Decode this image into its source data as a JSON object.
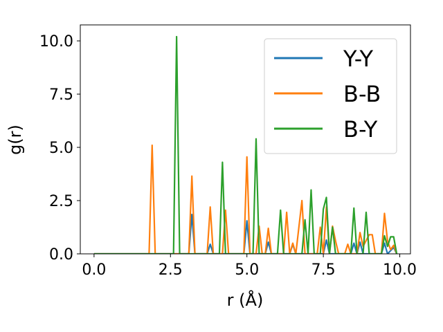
{
  "chart_data": {
    "type": "line",
    "xlabel": "r (Å)",
    "ylabel": "g(r)",
    "xlim": [
      -0.45,
      10.35
    ],
    "ylim": [
      0,
      10.75
    ],
    "xticks": [
      0.0,
      2.5,
      5.0,
      7.5,
      10.0
    ],
    "xtick_labels": [
      "0.0",
      "2.5",
      "5.0",
      "7.5",
      "10.0"
    ],
    "yticks": [
      0.0,
      2.5,
      5.0,
      7.5,
      10.0
    ],
    "ytick_labels": [
      "0.0",
      "2.5",
      "5.0",
      "7.5",
      "10.0"
    ],
    "grid": false,
    "legend_position": "top-right",
    "series": [
      {
        "name": "Y-Y",
        "color": "#1f77b4",
        "points": [
          [
            0,
            0
          ],
          [
            3.0,
            0
          ],
          [
            3.1,
            0
          ],
          [
            3.2,
            1.85
          ],
          [
            3.3,
            0
          ],
          [
            3.7,
            0
          ],
          [
            3.8,
            0.45
          ],
          [
            3.9,
            0
          ],
          [
            4.9,
            0
          ],
          [
            5.0,
            1.55
          ],
          [
            5.1,
            0
          ],
          [
            5.6,
            0
          ],
          [
            5.7,
            0.55
          ],
          [
            5.8,
            0
          ],
          [
            6.4,
            0
          ],
          [
            6.5,
            0.45
          ],
          [
            6.6,
            0
          ],
          [
            7.5,
            0
          ],
          [
            7.6,
            0.65
          ],
          [
            7.7,
            0
          ],
          [
            8.4,
            0
          ],
          [
            8.5,
            0.5
          ],
          [
            8.6,
            0
          ],
          [
            8.7,
            0.55
          ],
          [
            8.8,
            0
          ],
          [
            9.4,
            0
          ],
          [
            9.5,
            0.5
          ],
          [
            9.6,
            0
          ],
          [
            9.8,
            0.3
          ],
          [
            9.9,
            0
          ]
        ]
      },
      {
        "name": "B-B",
        "color": "#ff7f0e",
        "points": [
          [
            0,
            0
          ],
          [
            1.8,
            0
          ],
          [
            1.9,
            5.1
          ],
          [
            2.0,
            0
          ],
          [
            3.1,
            0
          ],
          [
            3.2,
            3.65
          ],
          [
            3.3,
            0
          ],
          [
            3.7,
            0
          ],
          [
            3.8,
            2.2
          ],
          [
            3.9,
            0
          ],
          [
            4.2,
            0
          ],
          [
            4.3,
            2.05
          ],
          [
            4.4,
            0
          ],
          [
            4.9,
            0
          ],
          [
            5.0,
            4.55
          ],
          [
            5.1,
            0
          ],
          [
            5.3,
            0
          ],
          [
            5.4,
            1.3
          ],
          [
            5.5,
            0
          ],
          [
            5.6,
            0
          ],
          [
            5.7,
            1.2
          ],
          [
            5.8,
            0
          ],
          [
            6.2,
            0
          ],
          [
            6.3,
            1.95
          ],
          [
            6.4,
            0
          ],
          [
            6.5,
            0.5
          ],
          [
            6.6,
            0
          ],
          [
            6.8,
            2.5
          ],
          [
            6.9,
            0
          ],
          [
            7.3,
            0
          ],
          [
            7.4,
            1.25
          ],
          [
            7.5,
            0
          ],
          [
            7.6,
            2.2
          ],
          [
            7.7,
            0
          ],
          [
            7.8,
            1.3
          ],
          [
            7.9,
            0.6
          ],
          [
            8.0,
            0
          ],
          [
            8.2,
            0
          ],
          [
            8.3,
            0.45
          ],
          [
            8.4,
            0
          ],
          [
            8.6,
            0
          ],
          [
            8.7,
            1.0
          ],
          [
            8.8,
            0.35
          ],
          [
            9.0,
            0.9
          ],
          [
            9.1,
            0.9
          ],
          [
            9.2,
            0
          ],
          [
            9.4,
            0
          ],
          [
            9.5,
            1.9
          ],
          [
            9.6,
            0.6
          ],
          [
            9.7,
            0.2
          ],
          [
            9.8,
            0.4
          ],
          [
            9.9,
            0
          ]
        ]
      },
      {
        "name": "B-Y",
        "color": "#2ca02c",
        "points": [
          [
            0,
            0
          ],
          [
            2.6,
            0
          ],
          [
            2.7,
            10.2
          ],
          [
            2.8,
            0
          ],
          [
            4.1,
            0
          ],
          [
            4.2,
            4.3
          ],
          [
            4.3,
            0
          ],
          [
            5.2,
            0
          ],
          [
            5.3,
            5.4
          ],
          [
            5.4,
            0
          ],
          [
            6.0,
            0
          ],
          [
            6.1,
            2.05
          ],
          [
            6.2,
            0
          ],
          [
            6.8,
            0
          ],
          [
            6.9,
            1.6
          ],
          [
            7.0,
            0
          ],
          [
            7.1,
            3.0
          ],
          [
            7.2,
            0
          ],
          [
            7.4,
            0
          ],
          [
            7.5,
            2.1
          ],
          [
            7.6,
            2.65
          ],
          [
            7.7,
            0
          ],
          [
            7.8,
            1.25
          ],
          [
            7.9,
            0
          ],
          [
            8.4,
            0
          ],
          [
            8.5,
            2.15
          ],
          [
            8.6,
            0
          ],
          [
            8.8,
            0
          ],
          [
            8.9,
            1.95
          ],
          [
            9.0,
            0
          ],
          [
            9.4,
            0
          ],
          [
            9.5,
            0.85
          ],
          [
            9.6,
            0.35
          ],
          [
            9.7,
            0.8
          ],
          [
            9.8,
            0.8
          ],
          [
            9.9,
            0
          ]
        ]
      }
    ]
  }
}
